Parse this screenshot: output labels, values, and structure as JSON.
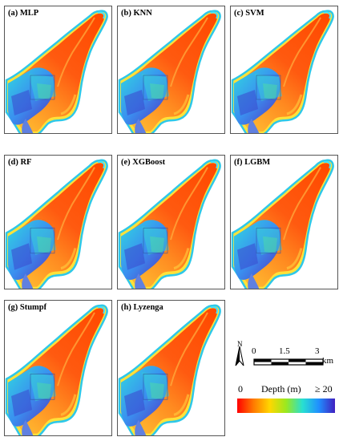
{
  "panels": [
    {
      "label": "(a) MLP"
    },
    {
      "label": "(b) KNN"
    },
    {
      "label": "(c) SVM"
    },
    {
      "label": "(d) RF"
    },
    {
      "label": "(e) XGBoost"
    },
    {
      "label": "(f) LGBM"
    },
    {
      "label": "(g) Stumpf"
    },
    {
      "label": "(h) Lyzenga"
    }
  ],
  "legend": {
    "north": "N",
    "scale_ticks": [
      "0",
      "1.5",
      "3"
    ],
    "scale_unit": "km",
    "depth_min": "0",
    "depth_title": "Depth (m)",
    "depth_max": "≥ 20",
    "colors": [
      "#ff0000",
      "#ff7a00",
      "#ffd700",
      "#9be81f",
      "#28e0d0",
      "#2090ff",
      "#4020c0"
    ]
  }
}
